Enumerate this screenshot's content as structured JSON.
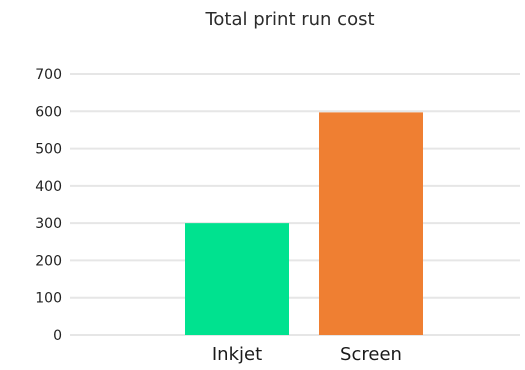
{
  "chart_data": {
    "type": "bar",
    "title": "Total print run cost",
    "xlabel": "",
    "ylabel": "",
    "categories": [
      "Inkjet",
      "Screen"
    ],
    "values": [
      300,
      597
    ],
    "colors": [
      "#00e28f",
      "#ef7f32"
    ],
    "ylim": [
      0,
      700
    ],
    "yticks": [
      0,
      100,
      200,
      300,
      400,
      500,
      600,
      700
    ],
    "grid": true,
    "legend": "none"
  }
}
